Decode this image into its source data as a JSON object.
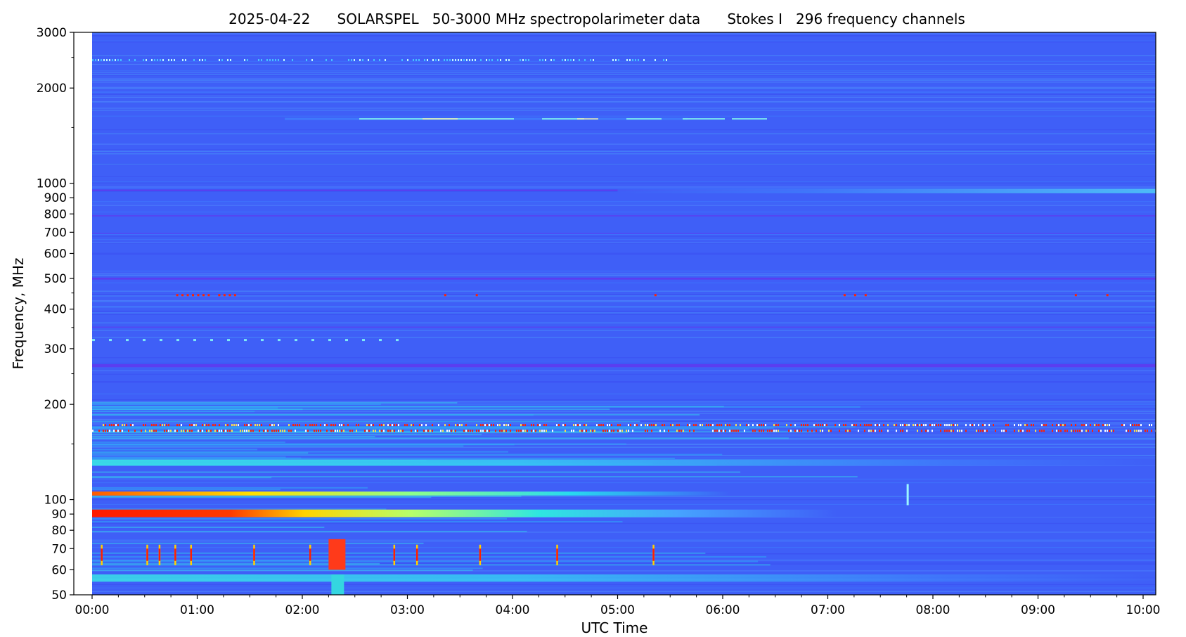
{
  "chart_data": {
    "type": "heatmap",
    "title": "2025-04-22      SOLARSPEL   50-3000 MHz spectropolarimeter data      Stokes I   296 frequency channels",
    "xlabel": "UTC Time",
    "ylabel": "Frequency, MHz",
    "x_range": [
      "00:00",
      "10:11"
    ],
    "y_range": [
      50,
      3000
    ],
    "y_scale": "log",
    "x_ticks": [
      "00:00",
      "01:00",
      "02:00",
      "03:00",
      "04:00",
      "05:00",
      "06:00",
      "07:00",
      "08:00",
      "09:00",
      "10:00"
    ],
    "y_ticks": [
      50,
      60,
      70,
      80,
      90,
      100,
      200,
      300,
      400,
      500,
      600,
      700,
      800,
      900,
      1000,
      2000,
      3000
    ],
    "y_minor_ticks": [
      150,
      250,
      350,
      450,
      1500,
      2500
    ],
    "colormap": "rainbow",
    "background_color": "#3f5ff7",
    "features": [
      {
        "freq": [
          88,
          93
        ],
        "start": "00:00",
        "end": "03:00",
        "level": "high, fading after 01:30"
      },
      {
        "freq": [
          103,
          106
        ],
        "start": "00:00",
        "end": "03:30",
        "level": "high, fading"
      },
      {
        "freq": [
          163,
          167
        ],
        "start": "00:00",
        "end": "10:11",
        "level": "intermittent red"
      },
      {
        "freq": [
          170,
          173
        ],
        "start": "00:00",
        "end": "10:11",
        "level": "intermittent red"
      },
      {
        "freq": [
          128,
          134
        ],
        "start": "00:00",
        "end": "05:00",
        "level": "medium"
      },
      {
        "freq": [
          1585,
          1610
        ],
        "start": "01:50",
        "end": "05:40",
        "level": "medium"
      },
      {
        "freq": [
          930,
          960
        ],
        "start": "05:00",
        "end": "10:11",
        "level": "medium"
      },
      {
        "freq": [
          2400,
          2500
        ],
        "start": "00:00",
        "end": "05:30",
        "level": "intermittent"
      },
      {
        "freq": [
          55,
          58
        ],
        "start": "00:00",
        "end": "10:11",
        "level": "medium"
      },
      {
        "freq": [
          60,
          75
        ],
        "start": "02:15",
        "end": "02:30",
        "level": "burst, red"
      }
    ]
  }
}
